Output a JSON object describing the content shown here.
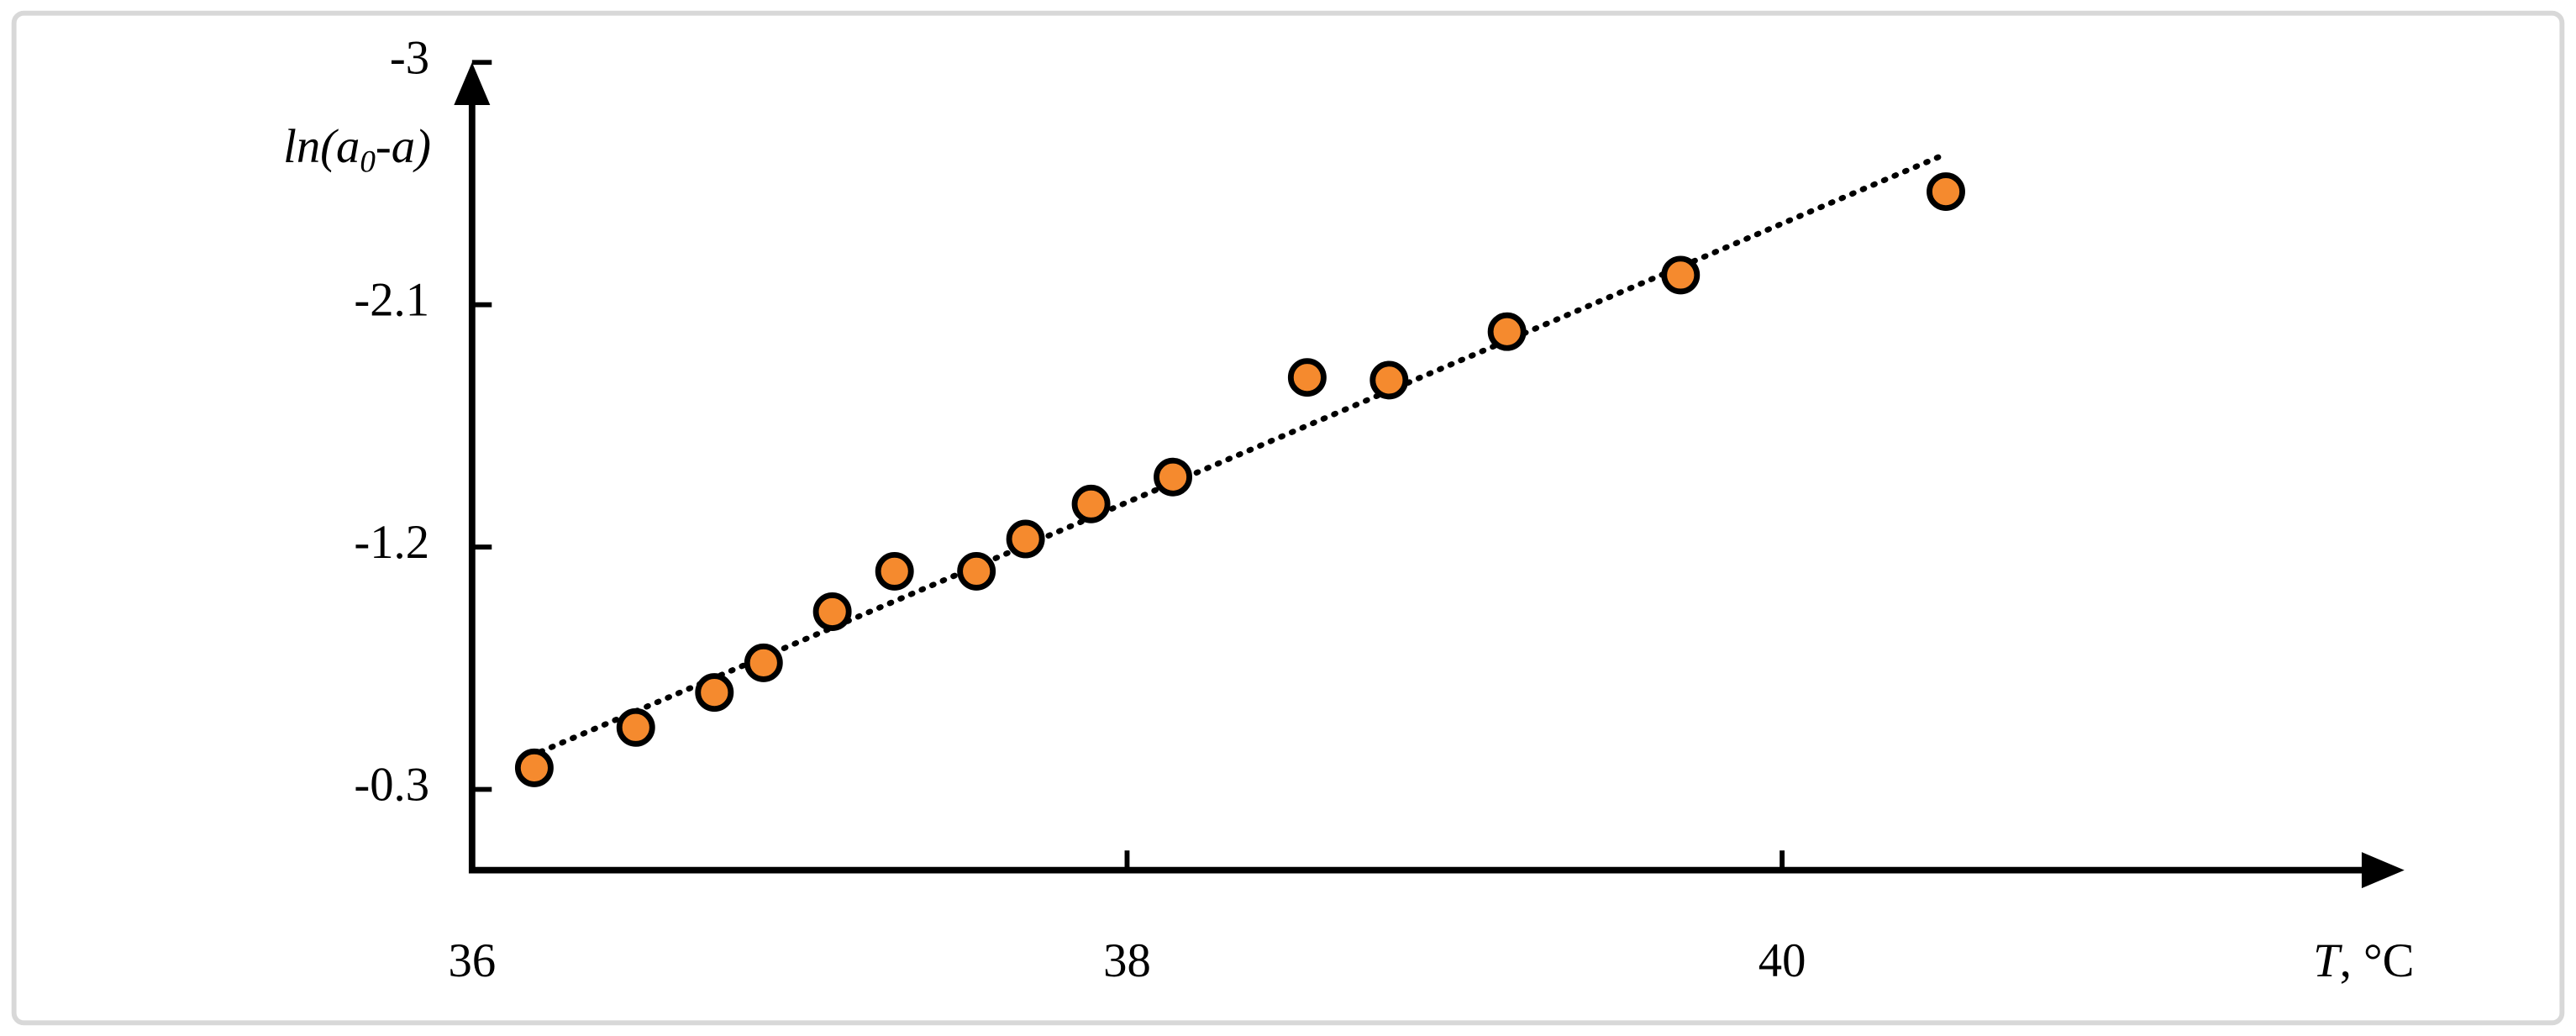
{
  "chart_data": {
    "type": "scatter",
    "x_label": {
      "var": "T",
      "unit": ", °C"
    },
    "y_label": {
      "head": "ln(a",
      "sub": "0",
      "tail": "-a)"
    },
    "x": [
      36.19,
      36.5,
      36.74,
      36.89,
      37.1,
      37.29,
      37.54,
      37.69,
      37.89,
      38.14,
      38.55,
      38.8,
      39.16,
      39.69,
      40.5
    ],
    "values": [
      -0.38,
      -0.53,
      -0.66,
      -0.77,
      -0.96,
      -1.11,
      -1.11,
      -1.23,
      -1.36,
      -1.46,
      -1.83,
      -1.82,
      -2.0,
      -2.21,
      -2.52
    ],
    "color": "#f58a2e",
    "trendline": {
      "x": [
        36.21,
        40.5
      ],
      "values": [
        -0.44,
        -2.66
      ]
    },
    "xlim": [
      36,
      41.9
    ],
    "xticks": [
      36,
      38,
      40
    ],
    "ylim": [
      0,
      -3
    ],
    "yticks": [
      -0.3,
      -1.2,
      -2.1,
      -3
    ]
  }
}
